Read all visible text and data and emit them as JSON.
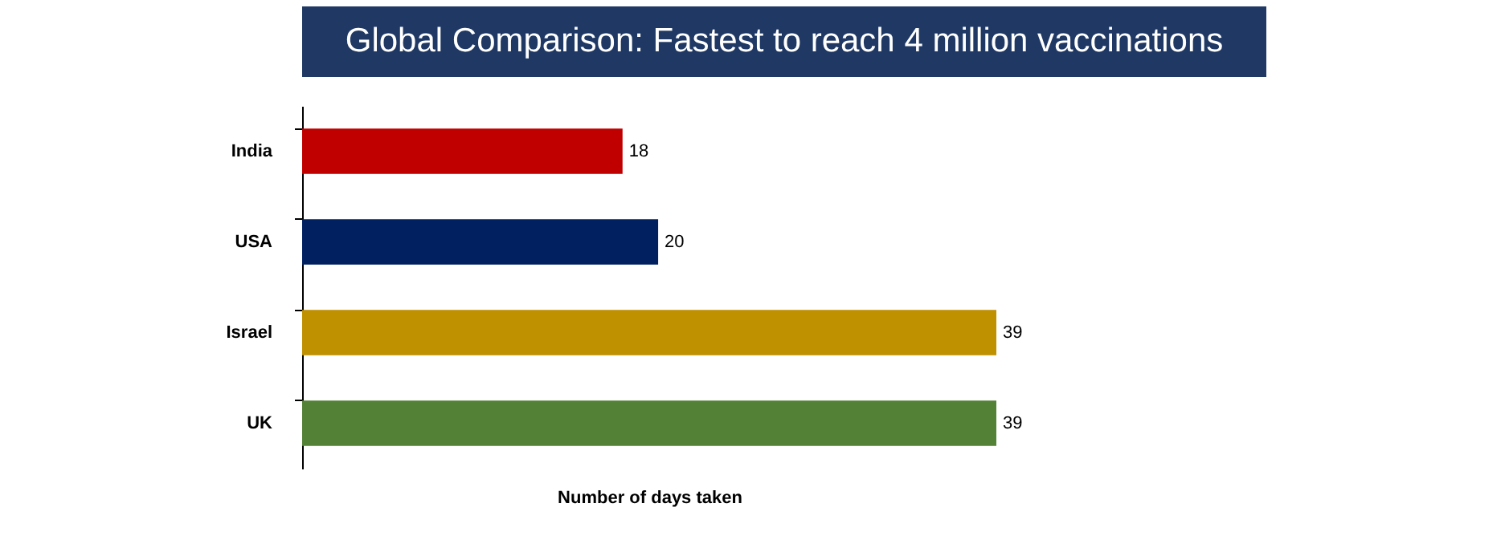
{
  "chart_data": {
    "type": "bar",
    "orientation": "horizontal",
    "title": "Global Comparison: Fastest to reach 4 million vaccinations",
    "xlabel": "Number of days taken",
    "categories": [
      "India",
      "USA",
      "Israel",
      "UK"
    ],
    "values": [
      18,
      20,
      39,
      39
    ],
    "colors": [
      "#c00000",
      "#002060",
      "#bf9000",
      "#538135"
    ],
    "data_labels": true,
    "legend": false,
    "grid": false
  }
}
